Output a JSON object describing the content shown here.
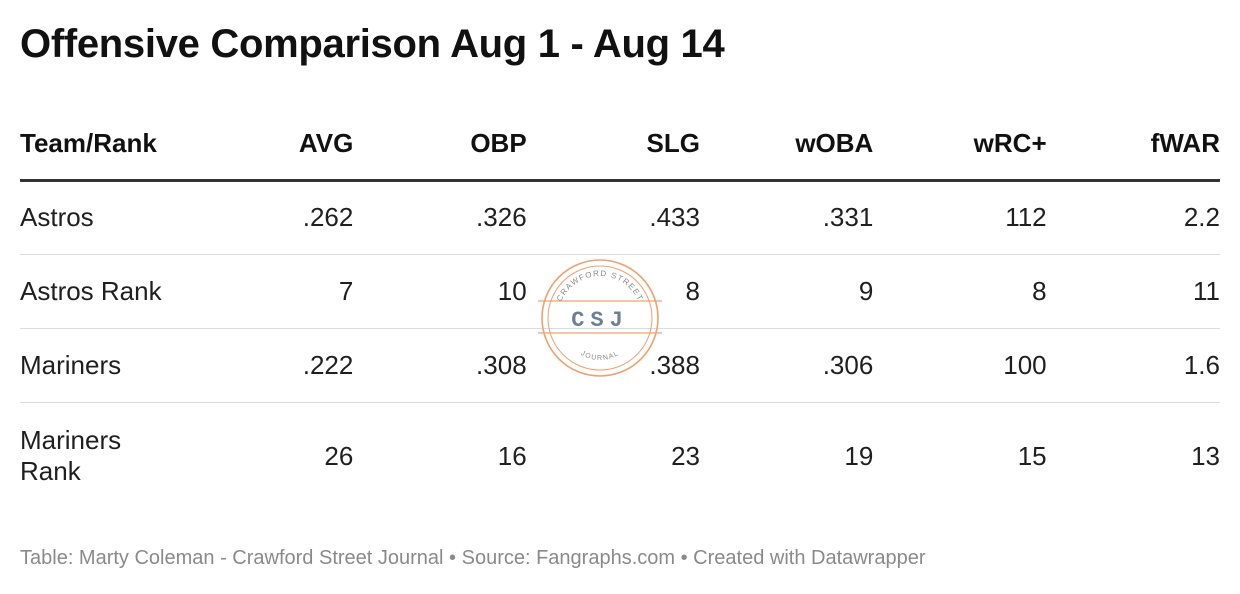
{
  "chart_data": {
    "type": "table",
    "title": "Offensive Comparison Aug 1 - Aug 14",
    "columns": [
      "Team/Rank",
      "AVG",
      "OBP",
      "SLG",
      "wOBA",
      "wRC+",
      "fWAR"
    ],
    "rows": [
      {
        "label": "Astros",
        "values": [
          ".262",
          ".326",
          ".433",
          ".331",
          "112",
          "2.2"
        ]
      },
      {
        "label": "Astros Rank",
        "values": [
          "7",
          "10",
          "8",
          "9",
          "8",
          "11"
        ]
      },
      {
        "label": "Mariners",
        "values": [
          ".222",
          ".308",
          ".388",
          ".306",
          "100",
          "1.6"
        ]
      },
      {
        "label": "Mariners Rank",
        "values": [
          "26",
          "16",
          "23",
          "19",
          "15",
          "13"
        ]
      }
    ]
  },
  "footer": "Table: Marty Coleman - Crawford Street Journal • Source: Fangraphs.com • Created with Datawrapper",
  "watermark": {
    "top_text": "CRAWFORD STREET",
    "monogram": "CSJ",
    "bottom_text": "JOURNAL",
    "color": "#f0a070",
    "monogram_color": "#6d7f95"
  }
}
